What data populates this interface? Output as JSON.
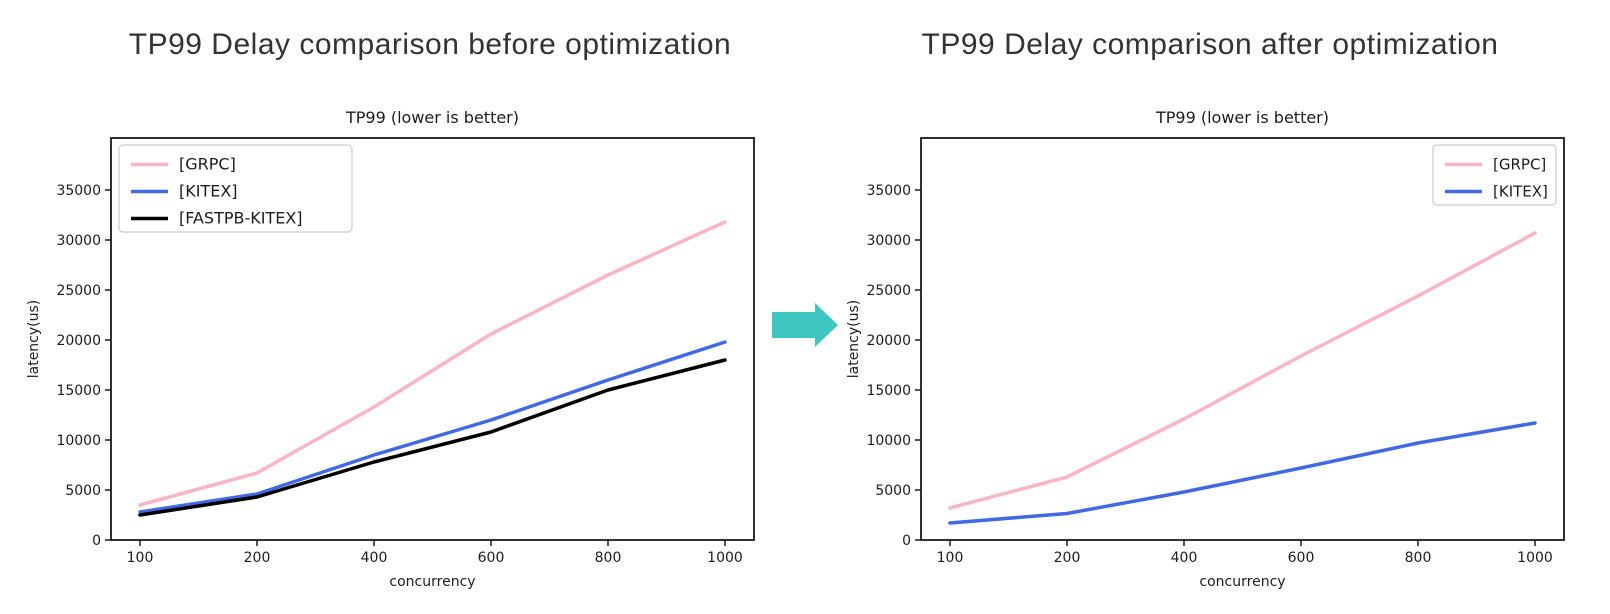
{
  "panels": [
    {
      "heading": "TP99 Delay comparison before optimization"
    },
    {
      "heading": "TP99 Delay comparison after optimization"
    }
  ],
  "arrow": {
    "icon": "right-arrow-icon",
    "color": "#3ec6c0",
    "direction": "right"
  },
  "chart_data": [
    {
      "type": "line",
      "title": "TP99 (lower is better)",
      "xlabel": "concurrency",
      "ylabel": "latency(us)",
      "categories": [
        "100",
        "200",
        "400",
        "600",
        "800",
        "1000"
      ],
      "yticks": [
        0,
        5000,
        10000,
        15000,
        20000,
        25000,
        30000,
        35000
      ],
      "ylim": [
        0,
        40200
      ],
      "grid": false,
      "legend_position": "upper-left",
      "series": [
        {
          "name": "[GRPC]",
          "color": "#f8b5c3",
          "values": [
            3500,
            6700,
            13300,
            20600,
            26500,
            31800
          ]
        },
        {
          "name": "[KITEX]",
          "color": "#4169e1",
          "values": [
            2800,
            4600,
            8500,
            12000,
            16000,
            19800
          ]
        },
        {
          "name": "[FASTPB-KITEX]",
          "color": "#000000",
          "values": [
            2500,
            4300,
            7800,
            10800,
            15000,
            18000
          ]
        }
      ]
    },
    {
      "type": "line",
      "title": "TP99 (lower is better)",
      "xlabel": "concurrency",
      "ylabel": "latency(us)",
      "categories": [
        "100",
        "200",
        "400",
        "600",
        "800",
        "1000"
      ],
      "yticks": [
        0,
        5000,
        10000,
        15000,
        20000,
        25000,
        30000,
        35000
      ],
      "ylim": [
        0,
        40200
      ],
      "grid": false,
      "legend_position": "upper-right",
      "series": [
        {
          "name": "[GRPC]",
          "color": "#f8b5c3",
          "values": [
            3200,
            6300,
            12100,
            18400,
            24400,
            30700
          ]
        },
        {
          "name": "[KITEX]",
          "color": "#4169e1",
          "values": [
            1700,
            2650,
            4800,
            7200,
            9700,
            11700
          ]
        }
      ]
    }
  ]
}
